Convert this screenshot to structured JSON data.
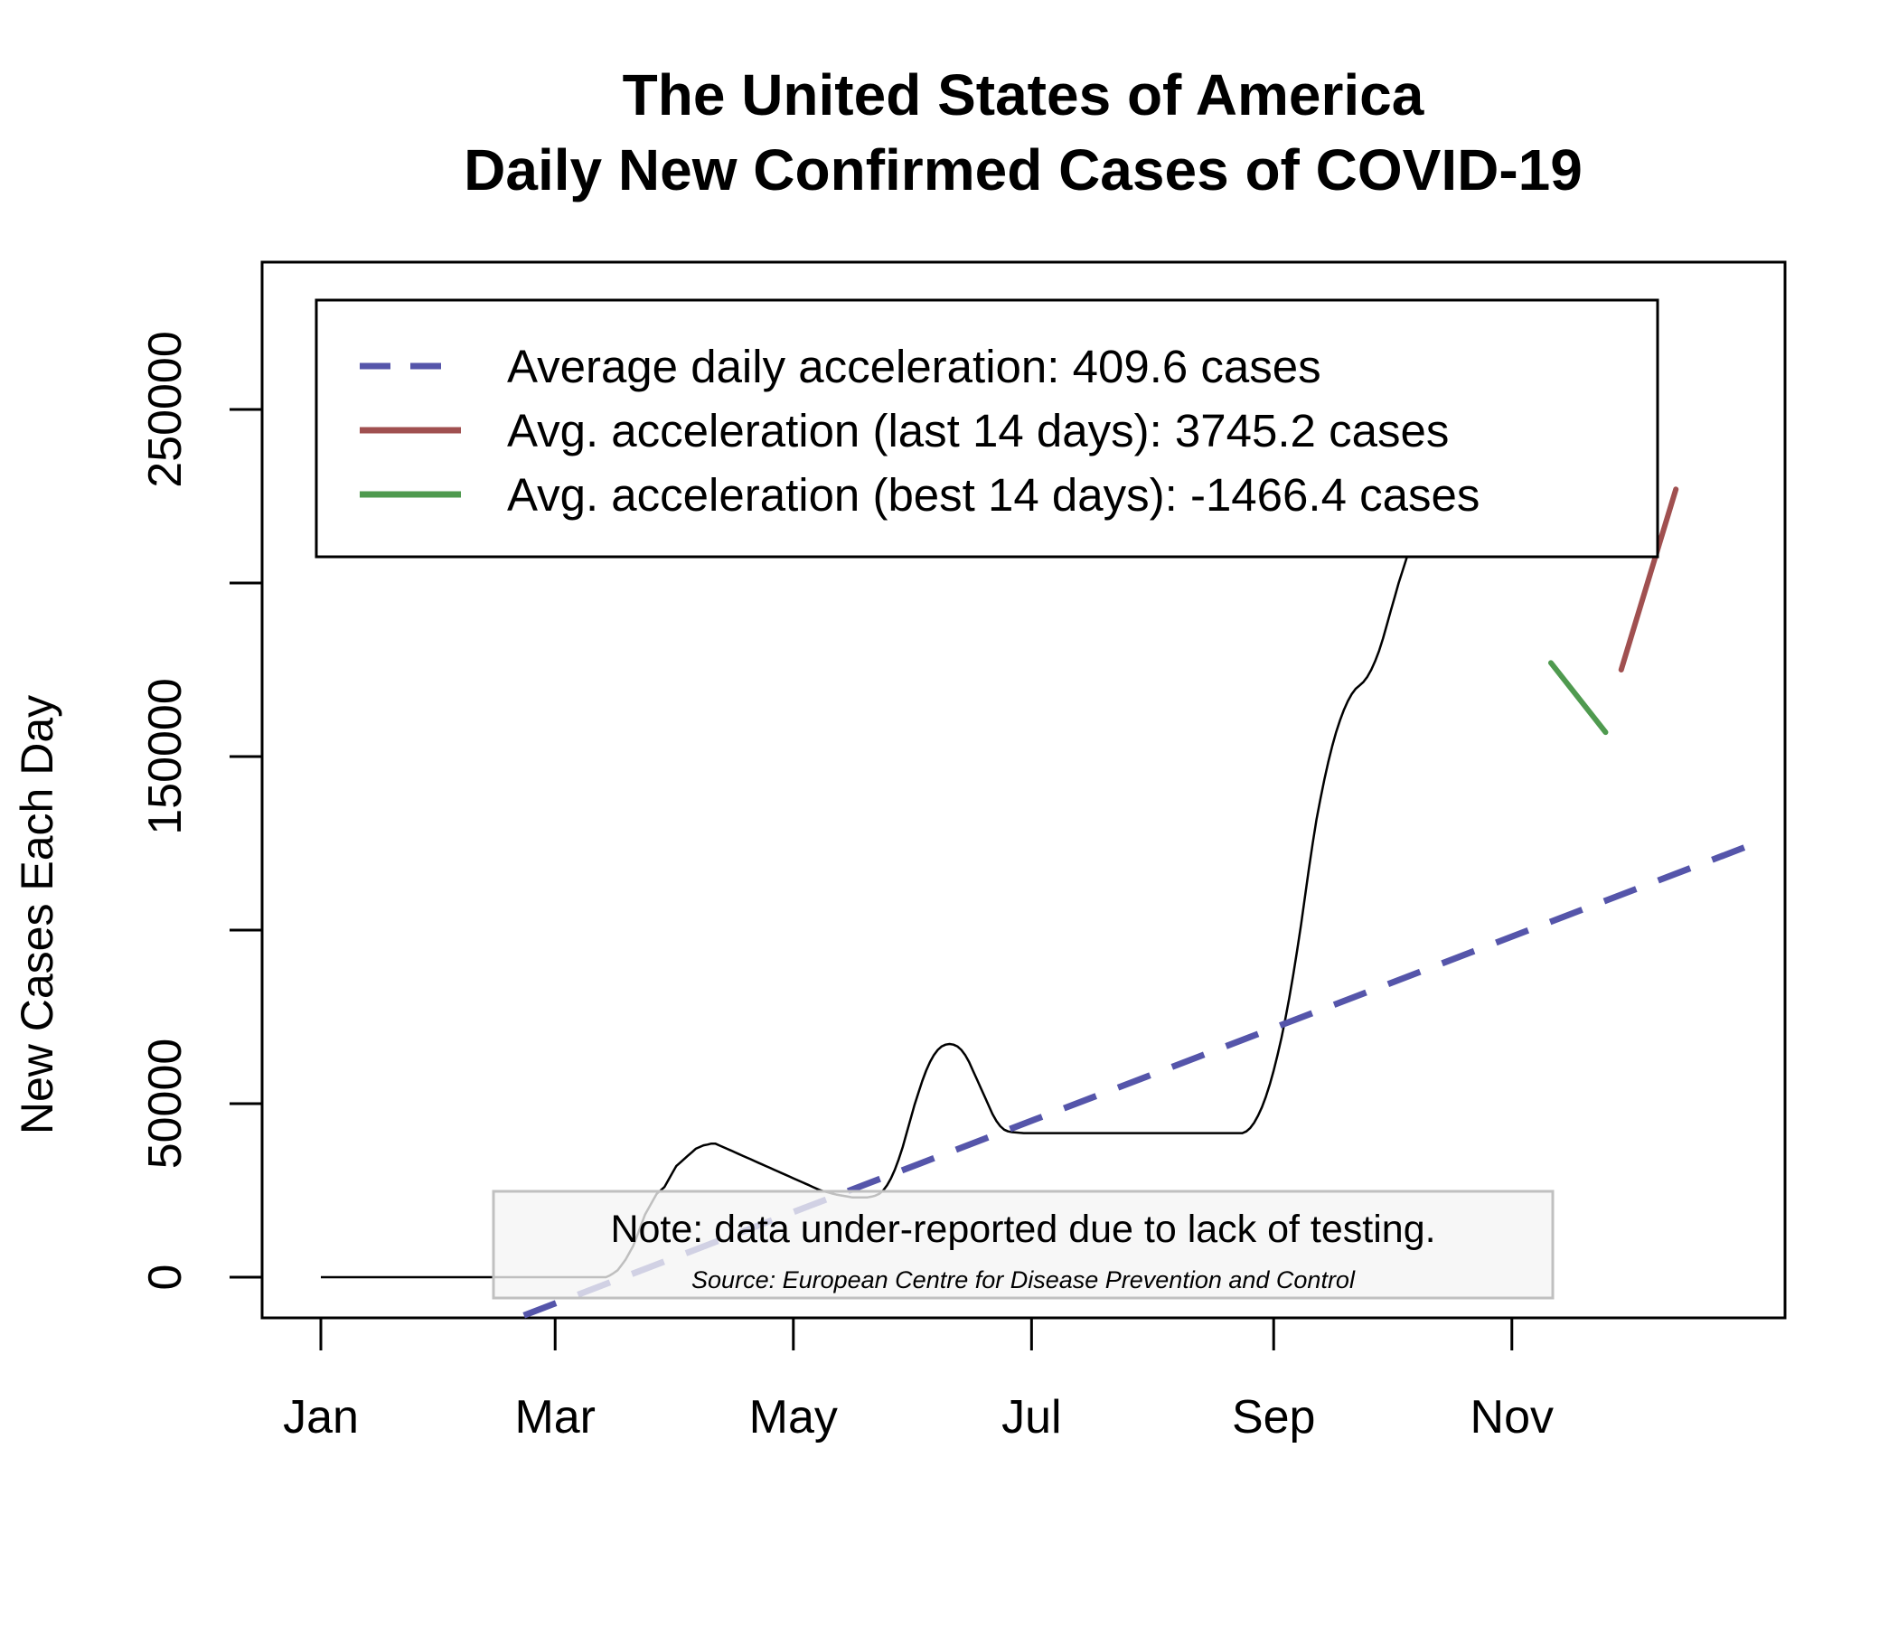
{
  "chart_data": {
    "type": "line",
    "title": [
      "The United States of America",
      "Daily New Confirmed Cases of COVID-19"
    ],
    "xlabel": "",
    "ylabel": "New Cases Each Day",
    "ylim": [
      -11000,
      292000
    ],
    "xlim": [
      "2020-01-01",
      "2020-12-31"
    ],
    "x_ticks": [
      {
        "label": "Jan",
        "date": "2020-01-01"
      },
      {
        "label": "Mar",
        "date": "2020-03-01"
      },
      {
        "label": "May",
        "date": "2020-05-01"
      },
      {
        "label": "Jul",
        "date": "2020-07-01"
      },
      {
        "label": "Sep",
        "date": "2020-09-01"
      },
      {
        "label": "Nov",
        "date": "2020-11-01"
      }
    ],
    "y_ticks": [
      {
        "value": 0,
        "label": "0"
      },
      {
        "value": 50000,
        "label": "50000"
      },
      {
        "value": 100000,
        "label": ""
      },
      {
        "value": 150000,
        "label": "150000"
      },
      {
        "value": 200000,
        "label": ""
      },
      {
        "value": 250000,
        "label": "250000"
      }
    ],
    "series": [
      {
        "name": "",
        "kind": "daily-cases",
        "color": "#000000",
        "x_start": "2020-01-01",
        "x_end": "2020-12-14",
        "values": [
          0,
          0,
          0,
          0,
          0,
          0,
          0,
          0,
          0,
          0,
          0,
          0,
          0,
          0,
          0,
          0,
          0,
          0,
          0,
          0,
          0,
          0,
          0,
          0,
          0,
          0,
          0,
          0,
          0,
          0,
          0,
          0,
          0,
          0,
          0,
          0,
          0,
          0,
          0,
          0,
          0,
          0,
          0,
          0,
          0,
          0,
          0,
          0,
          0,
          0,
          0,
          0,
          0,
          0,
          0,
          0,
          0,
          0,
          0,
          0,
          0,
          0,
          0,
          0,
          0,
          0,
          0,
          0,
          0,
          0,
          0,
          0,
          0,
          0,
          500,
          1200,
          2000,
          3500,
          5000,
          7000,
          9000,
          12000,
          15000,
          18000,
          20000,
          22000,
          24000,
          25000,
          26000,
          28000,
          30000,
          32000,
          33000,
          34000,
          35000,
          36000,
          37000,
          37500,
          38000,
          38200,
          38500,
          38500,
          38000,
          37500,
          37000,
          36500,
          36000,
          35500,
          35000,
          34500,
          34000,
          33500,
          33000,
          32500,
          32000,
          31500,
          31000,
          30500,
          30000,
          29500,
          29000,
          28500,
          28000,
          27500,
          27000,
          26500,
          26000,
          25500,
          25000,
          24700,
          24400,
          24100,
          23800,
          23600,
          23400,
          23200,
          23000,
          23000,
          23000,
          23000,
          23000,
          23200,
          23500,
          24000,
          25000,
          26500,
          28500,
          31000,
          34000,
          37500,
          41500,
          45500,
          49500,
          53000,
          56500,
          59500,
          62000,
          64000,
          65500,
          66500,
          67000,
          67200,
          67000,
          66500,
          65500,
          64000,
          62000,
          59500,
          57000,
          54500,
          52000,
          49500,
          47000,
          45000,
          43500,
          42500,
          42000,
          41800,
          41700,
          41600,
          41500,
          41500,
          41500,
          41500,
          41500,
          41500,
          41500,
          41500,
          41500,
          41500,
          41500,
          41500,
          41500,
          41500,
          41500,
          41500,
          41500,
          41500,
          41500,
          41500,
          41500,
          41500,
          41500,
          41500,
          41500,
          41500,
          41500,
          41500,
          41500,
          41500,
          41500,
          41500,
          41500,
          41500,
          41500,
          41500,
          41500,
          41500,
          41500,
          41500,
          41500,
          41500,
          41500,
          41500,
          41500,
          41500,
          41500,
          41500,
          41500,
          41500,
          41500,
          41500,
          41500,
          41500,
          41500,
          41500,
          41500,
          42000,
          43000,
          44500,
          46500,
          49000,
          52000,
          55500,
          59500,
          64000,
          69000,
          74500,
          80500,
          87000,
          94000,
          101500,
          109500,
          117500,
          125000,
          132000,
          138000,
          143500,
          148500,
          153000,
          157000,
          160500,
          163500,
          166000,
          168000,
          169500,
          170500,
          171500,
          173000,
          175000,
          177500,
          180500,
          184000,
          188000,
          192000,
          196000,
          200000,
          203500,
          207000,
          210000,
          212500,
          214500,
          216000,
          217000
        ]
      }
    ],
    "trend_lines": [
      {
        "name": "Average daily acceleration",
        "color": "#5555aa",
        "style": "dashed",
        "from": {
          "date": "2020-02-22",
          "value": -11000
        },
        "to": {
          "date": "2020-12-31",
          "value": 124000
        }
      },
      {
        "name": "Avg. acceleration (last 14 days)",
        "color": "#a05050",
        "style": "solid",
        "from": {
          "date": "2020-11-29",
          "value": 175000
        },
        "to": {
          "date": "2020-12-13",
          "value": 227000
        }
      },
      {
        "name": "Avg. acceleration (best 14 days)",
        "color": "#4f9a4f",
        "style": "solid",
        "from": {
          "date": "2020-11-11",
          "value": 177000
        },
        "to": {
          "date": "2020-11-25",
          "value": 157000
        }
      }
    ],
    "legend": {
      "placement": "top",
      "entries": [
        {
          "label": "Average daily acceleration: 409.6 cases",
          "color": "#5555aa",
          "style": "dashed"
        },
        {
          "label": "Avg. acceleration (last 14 days): 3745.2 cases",
          "color": "#a05050",
          "style": "solid"
        },
        {
          "label": "Avg. acceleration (best 14 days): -1466.4 cases",
          "color": "#4f9a4f",
          "style": "solid"
        }
      ]
    },
    "note": "Note: data under-reported due to lack of testing.",
    "source": "Source: European Centre for Disease Prevention and Control",
    "grid": false
  }
}
